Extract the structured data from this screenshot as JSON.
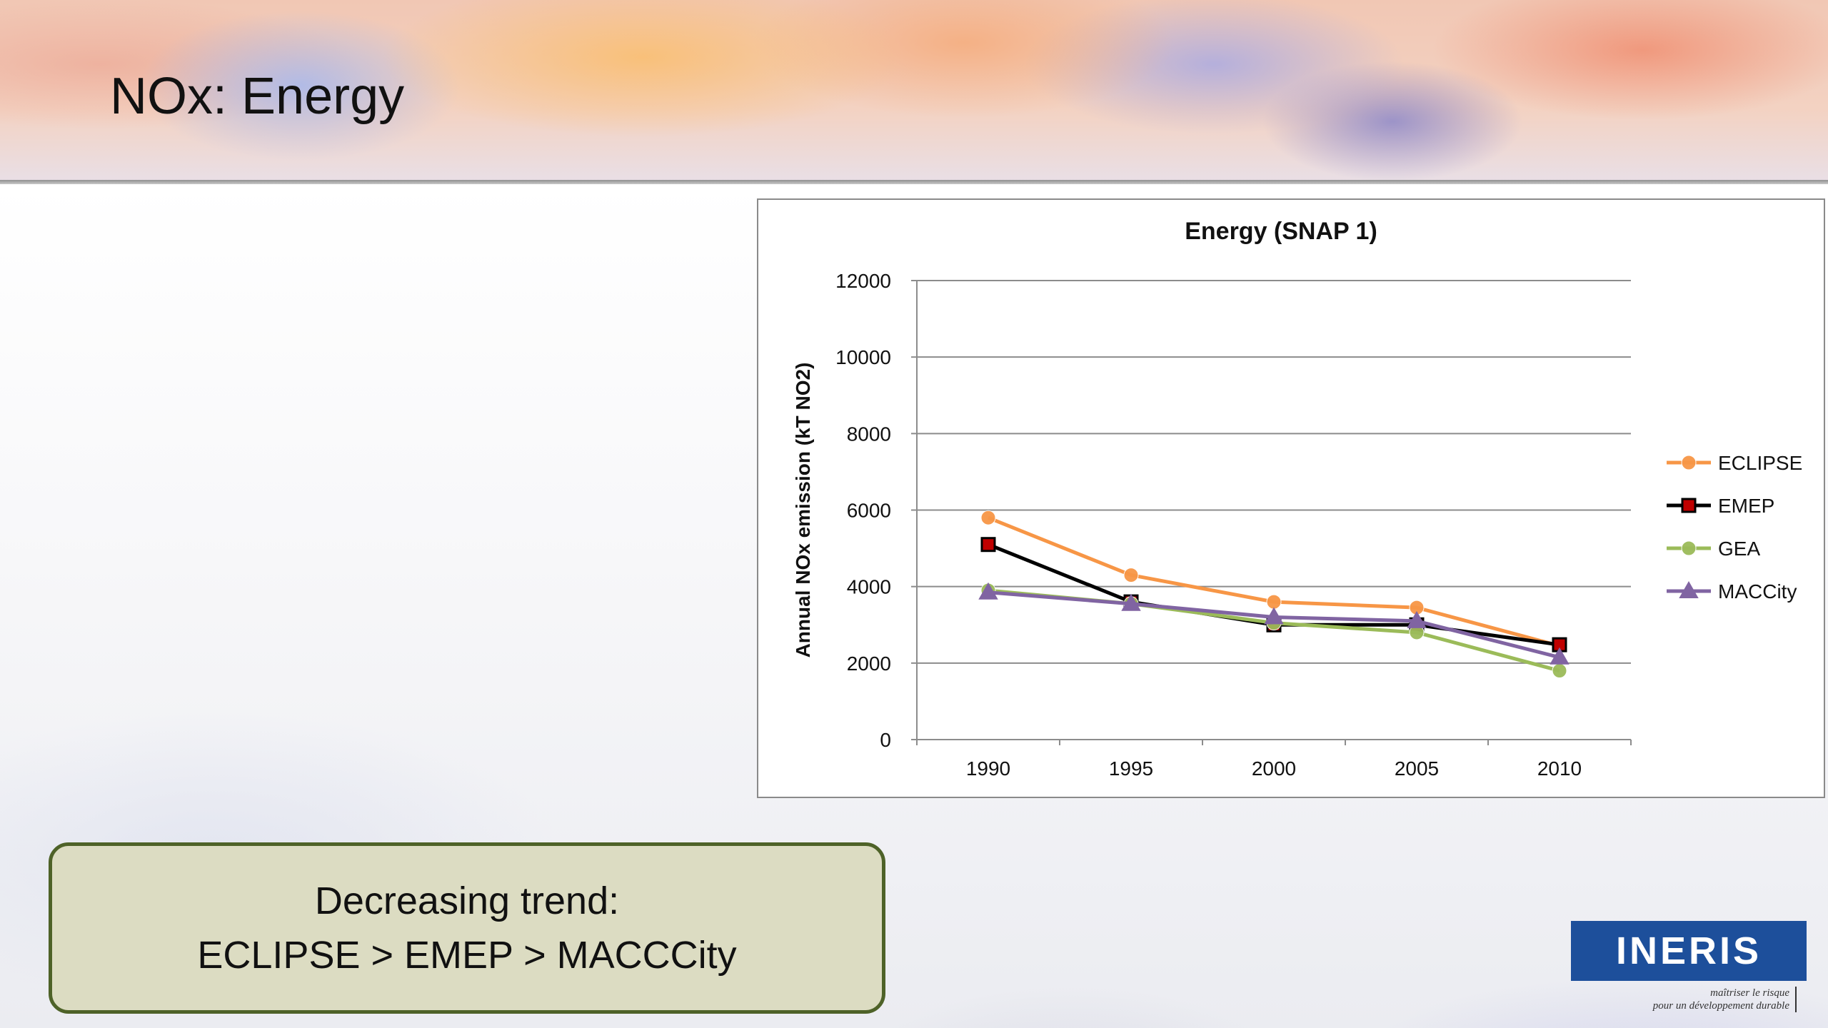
{
  "slide": {
    "title": "NOx: Energy",
    "callout_line1": "Decreasing trend:",
    "callout_line2": "ECLIPSE > EMEP > MACCCity"
  },
  "logo": {
    "name": "INERIS",
    "tagline_line1": "maîtriser le risque",
    "tagline_line2": "pour un développement durable"
  },
  "chart_data": {
    "type": "line",
    "title": "Energy (SNAP 1)",
    "xlabel": "",
    "ylabel": "Annual NOx emission (kT NO2)",
    "categories": [
      "1990",
      "1995",
      "2000",
      "2005",
      "2010"
    ],
    "ylim": [
      0,
      12000
    ],
    "yticks": [
      0,
      2000,
      4000,
      6000,
      8000,
      10000,
      12000
    ],
    "grid": true,
    "legend_position": "right",
    "series": [
      {
        "name": "ECLIPSE",
        "values": [
          5800,
          4300,
          3600,
          3450,
          2450
        ],
        "color": "#f79646",
        "marker": "circle"
      },
      {
        "name": "EMEP",
        "values": [
          5100,
          3600,
          3000,
          3000,
          2480
        ],
        "color": "#000000",
        "marker": "square",
        "marker_fill": "#c00000"
      },
      {
        "name": "GEA",
        "values": [
          3900,
          3550,
          3050,
          2800,
          1800
        ],
        "color": "#9bbb59",
        "marker": "circle"
      },
      {
        "name": "MACCity",
        "values": [
          3850,
          3550,
          3200,
          3100,
          2150
        ],
        "color": "#8064a2",
        "marker": "triangle"
      }
    ]
  }
}
